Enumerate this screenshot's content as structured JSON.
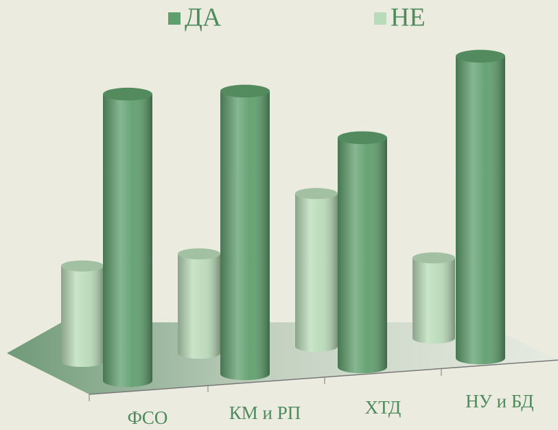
{
  "chart_data": {
    "type": "bar3d",
    "categories": [
      "ФСО",
      "КМ и РП",
      "ХТД",
      "НУ и БД"
    ],
    "series": [
      {
        "name": "ДА",
        "color": "#5f9f6d",
        "values": [
          75,
          74,
          60,
          79
        ]
      },
      {
        "name": "НЕ",
        "color": "#b9dbb9",
        "values": [
          25,
          26,
          40,
          21
        ]
      }
    ],
    "legend": "top"
  }
}
